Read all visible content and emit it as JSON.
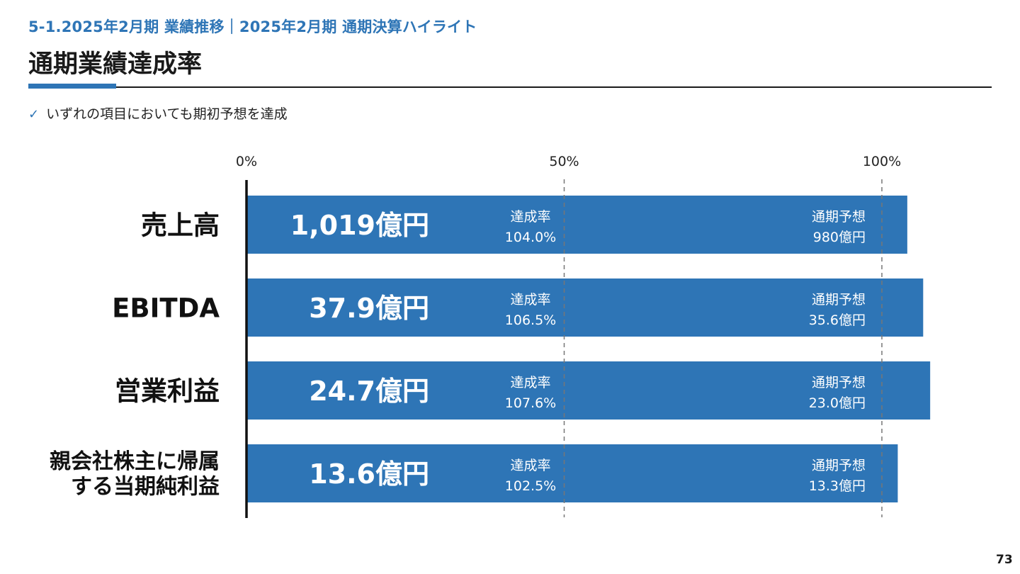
{
  "header": {
    "subtitle": "5-1.2025年2月期 業績推移｜2025年2月期 通期決算ハイライト",
    "title": "通期業績達成率",
    "bullet": "いずれの項目においても期初予想を達成"
  },
  "page_number": "73",
  "colors": {
    "accent": "#2e75b6",
    "bar": "#2e75b6",
    "text": "#1a1a1a"
  },
  "chart_data": {
    "type": "bar",
    "orientation": "horizontal",
    "xlim": [
      0,
      100
    ],
    "x_ticks": [
      {
        "value": 0,
        "label": "0%"
      },
      {
        "value": 50,
        "label": "50%"
      },
      {
        "value": 100,
        "label": "100%"
      }
    ],
    "gridlines": "dashed at 50% and 100%",
    "rate_label": "達成率",
    "forecast_label": "通期予想",
    "rows": [
      {
        "category": [
          "売上高"
        ],
        "value": 104.0,
        "value_label": "1,019億円",
        "rate": "104.0%",
        "forecast": "980億円"
      },
      {
        "category": [
          "EBITDA"
        ],
        "value": 106.5,
        "value_label": "37.9億円",
        "rate": "106.5%",
        "forecast": "35.6億円"
      },
      {
        "category": [
          "営業利益"
        ],
        "value": 107.6,
        "value_label": "24.7億円",
        "rate": "107.6%",
        "forecast": "23.0億円"
      },
      {
        "category": [
          "親会社株主に帰属",
          "する当期純利益"
        ],
        "value": 102.5,
        "value_label": "13.6億円",
        "rate": "102.5%",
        "forecast": "13.3億円"
      }
    ]
  }
}
